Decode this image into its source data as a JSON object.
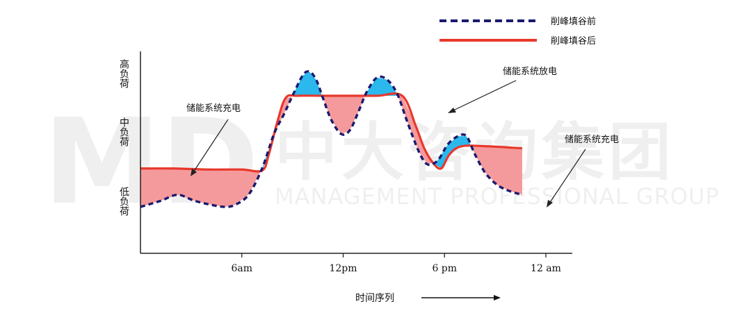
{
  "chart_data": {
    "type": "area",
    "title": "",
    "xlabel": "时间序列",
    "ylabel_levels": [
      "高负荷",
      "中负荷",
      "低负荷"
    ],
    "x_ticks": [
      "6am",
      "12pm",
      "6 pm",
      "12 am"
    ],
    "x_tick_values": [
      6,
      12,
      18,
      24
    ],
    "xlim": [
      0,
      24
    ],
    "ylim": [
      0,
      10
    ],
    "grid": false,
    "legend_position": "top-right",
    "series": [
      {
        "name": "削峰填谷前",
        "style": "dashed",
        "color": "#1a1a6e",
        "points": [
          [
            0,
            2.3
          ],
          [
            1.2,
            2.6
          ],
          [
            2.2,
            2.9
          ],
          [
            3.2,
            2.6
          ],
          [
            4.2,
            2.4
          ],
          [
            5.0,
            2.3
          ],
          [
            5.6,
            2.4
          ],
          [
            6.4,
            2.9
          ],
          [
            7.2,
            4.2
          ],
          [
            7.9,
            5.9
          ],
          [
            8.5,
            6.9
          ],
          [
            9.0,
            7.8
          ],
          [
            9.6,
            8.8
          ],
          [
            10.0,
            9.0
          ],
          [
            10.4,
            8.6
          ],
          [
            10.8,
            7.7
          ],
          [
            11.3,
            6.6
          ],
          [
            11.9,
            5.9
          ],
          [
            12.4,
            6.1
          ],
          [
            12.9,
            7.0
          ],
          [
            13.4,
            8.0
          ],
          [
            14.0,
            8.7
          ],
          [
            14.6,
            8.6
          ],
          [
            15.2,
            7.9
          ],
          [
            15.8,
            6.5
          ],
          [
            16.5,
            5.0
          ],
          [
            17.0,
            4.4
          ],
          [
            17.6,
            4.6
          ],
          [
            18.2,
            5.4
          ],
          [
            18.8,
            5.8
          ],
          [
            19.3,
            5.8
          ],
          [
            19.8,
            4.9
          ],
          [
            20.4,
            4.0
          ],
          [
            21.1,
            3.4
          ],
          [
            21.8,
            3.1
          ],
          [
            22.6,
            2.9
          ]
        ]
      },
      {
        "name": "削峰填谷后",
        "style": "solid",
        "color": "#e8382b",
        "points": [
          [
            0,
            4.2
          ],
          [
            2.0,
            4.2
          ],
          [
            4.0,
            4.15
          ],
          [
            6.0,
            4.15
          ],
          [
            7.2,
            4.1
          ],
          [
            7.6,
            4.9
          ],
          [
            8.1,
            6.5
          ],
          [
            8.6,
            7.7
          ],
          [
            9.3,
            7.8
          ],
          [
            11.0,
            7.8
          ],
          [
            12.5,
            7.8
          ],
          [
            14.0,
            7.8
          ],
          [
            15.5,
            7.8
          ],
          [
            16.3,
            6.3
          ],
          [
            16.8,
            5.2
          ],
          [
            17.3,
            4.5
          ],
          [
            17.8,
            4.2
          ],
          [
            18.3,
            4.9
          ],
          [
            19.0,
            5.3
          ],
          [
            20.5,
            5.3
          ],
          [
            22.6,
            5.2
          ]
        ]
      }
    ],
    "annotations": [
      {
        "text": "储能系统充电",
        "target": "left valley"
      },
      {
        "text": "储能系统放电",
        "target": "afternoon peak"
      },
      {
        "text": "储能系统充电",
        "target": "night valley"
      }
    ],
    "fill_colors": {
      "discharge": "#2bb8ec",
      "charge": "#f59a9c"
    }
  },
  "watermark": {
    "cn": "中大咨询集团",
    "en": "MANAGEMENT PROFESSIONAL GROUP",
    "logo": "MD"
  }
}
